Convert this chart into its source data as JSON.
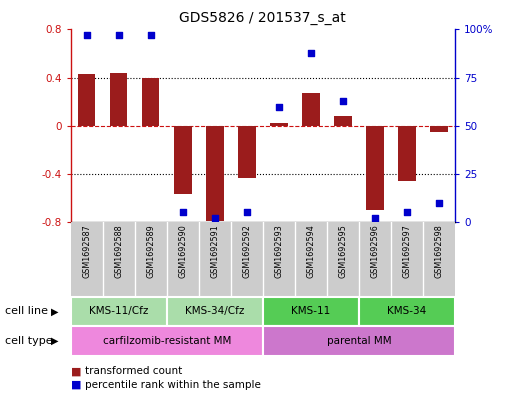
{
  "title": "GDS5826 / 201537_s_at",
  "samples": [
    "GSM1692587",
    "GSM1692588",
    "GSM1692589",
    "GSM1692590",
    "GSM1692591",
    "GSM1692592",
    "GSM1692593",
    "GSM1692594",
    "GSM1692595",
    "GSM1692596",
    "GSM1692597",
    "GSM1692598"
  ],
  "transformed_count": [
    0.43,
    0.44,
    0.4,
    -0.57,
    -0.79,
    -0.43,
    0.02,
    0.27,
    0.08,
    -0.7,
    -0.46,
    -0.05
  ],
  "percentile_rank": [
    97,
    97,
    97,
    5,
    2,
    5,
    60,
    88,
    63,
    2,
    5,
    10
  ],
  "bar_color": "#9B1C1C",
  "dot_color": "#0000CC",
  "ylim_left": [
    -0.8,
    0.8
  ],
  "ylim_right": [
    0,
    100
  ],
  "yticks_left": [
    -0.8,
    -0.4,
    0.0,
    0.4,
    0.8
  ],
  "ytick_labels_left": [
    "-0.8",
    "-0.4",
    "0",
    "0.4",
    "0.8"
  ],
  "yticks_right": [
    0,
    25,
    50,
    75,
    100
  ],
  "ytick_labels_right": [
    "0",
    "25",
    "50",
    "75",
    "100%"
  ],
  "cell_line_groups": [
    {
      "label": "KMS-11/Cfz",
      "start": 0,
      "end": 3,
      "color": "#AADDAA"
    },
    {
      "label": "KMS-34/Cfz",
      "start": 3,
      "end": 6,
      "color": "#AADDAA"
    },
    {
      "label": "KMS-11",
      "start": 6,
      "end": 9,
      "color": "#55CC55"
    },
    {
      "label": "KMS-34",
      "start": 9,
      "end": 12,
      "color": "#55CC55"
    }
  ],
  "cell_type_groups": [
    {
      "label": "carfilzomib-resistant MM",
      "start": 0,
      "end": 6,
      "color": "#EE88DD"
    },
    {
      "label": "parental MM",
      "start": 6,
      "end": 12,
      "color": "#CC77CC"
    }
  ],
  "legend_items": [
    {
      "label": "transformed count",
      "color": "#9B1C1C"
    },
    {
      "label": "percentile rank within the sample",
      "color": "#0000CC"
    }
  ],
  "row_labels": [
    "cell line",
    "cell type"
  ],
  "cell_line_row_color": "#CCCCCC",
  "bar_width": 0.55
}
